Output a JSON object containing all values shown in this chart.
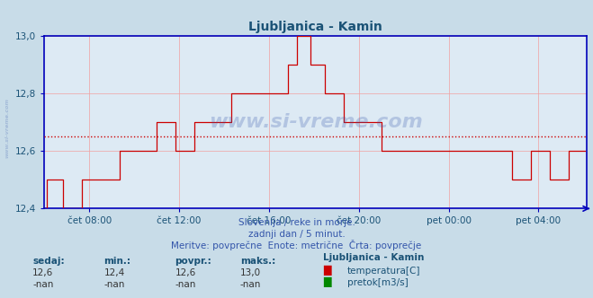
{
  "title": "Ljubljanica - Kamin",
  "title_color": "#1a5276",
  "bg_color": "#c8dce8",
  "plot_bg_color": "#ddeaf4",
  "grid_color": "#f0a0a0",
  "axis_color": "#0000bb",
  "line_color": "#cc0000",
  "avg_line_color": "#cc0000",
  "avg_line_value": 12.65,
  "ylim": [
    12.4,
    13.0
  ],
  "yticks": [
    12.4,
    12.6,
    12.8,
    13.0
  ],
  "subtitle1": "Slovenija / reke in morje.",
  "subtitle2": "zadnji dan / 5 minut.",
  "subtitle3": "Meritve: povprečne  Enote: metrične  Črta: povprečje",
  "subtitle_color": "#3355aa",
  "watermark": "www.si-vreme.com",
  "watermark_color": "#3355aa",
  "watermark_alpha": 0.25,
  "side_watermark": "www.si-vreme.com",
  "legend_title": "Ljubljanica - Kamin",
  "legend_title_color": "#1a5276",
  "stat_labels": [
    "sedaj:",
    "min.:",
    "povpr.:",
    "maks.:"
  ],
  "stat_values_temp": [
    "12,6",
    "12,4",
    "12,6",
    "13,0"
  ],
  "stat_values_flow": [
    "-nan",
    "-nan",
    "-nan",
    "-nan"
  ],
  "stat_color": "#1a5276",
  "stat_value_color": "#333333",
  "legend_temp_color": "#cc0000",
  "legend_flow_color": "#008800",
  "tick_label_color": "#1a5276",
  "xtick_labels": [
    "čet 08:00",
    "čet 12:00",
    "čet 16:00",
    "čet 20:00",
    "pet 00:00",
    "pet 04:00"
  ],
  "total_points": 288,
  "temperature_data": [
    12.4,
    12.5,
    12.5,
    12.5,
    12.5,
    12.5,
    12.5,
    12.5,
    12.5,
    12.5,
    12.4,
    12.4,
    12.4,
    12.4,
    12.4,
    12.4,
    12.4,
    12.4,
    12.4,
    12.4,
    12.5,
    12.5,
    12.5,
    12.5,
    12.5,
    12.5,
    12.5,
    12.5,
    12.5,
    12.5,
    12.5,
    12.5,
    12.5,
    12.5,
    12.5,
    12.5,
    12.5,
    12.5,
    12.5,
    12.5,
    12.6,
    12.6,
    12.6,
    12.6,
    12.6,
    12.6,
    12.6,
    12.6,
    12.6,
    12.6,
    12.6,
    12.6,
    12.6,
    12.6,
    12.6,
    12.6,
    12.6,
    12.6,
    12.6,
    12.6,
    12.7,
    12.7,
    12.7,
    12.7,
    12.7,
    12.7,
    12.7,
    12.7,
    12.7,
    12.7,
    12.6,
    12.6,
    12.6,
    12.6,
    12.6,
    12.6,
    12.6,
    12.6,
    12.6,
    12.6,
    12.7,
    12.7,
    12.7,
    12.7,
    12.7,
    12.7,
    12.7,
    12.7,
    12.7,
    12.7,
    12.7,
    12.7,
    12.7,
    12.7,
    12.7,
    12.7,
    12.7,
    12.7,
    12.7,
    12.7,
    12.8,
    12.8,
    12.8,
    12.8,
    12.8,
    12.8,
    12.8,
    12.8,
    12.8,
    12.8,
    12.8,
    12.8,
    12.8,
    12.8,
    12.8,
    12.8,
    12.8,
    12.8,
    12.8,
    12.8,
    12.8,
    12.8,
    12.8,
    12.8,
    12.8,
    12.8,
    12.8,
    12.8,
    12.8,
    12.8,
    12.9,
    12.9,
    12.9,
    12.9,
    12.9,
    13.0,
    13.0,
    13.0,
    13.0,
    13.0,
    13.0,
    13.0,
    12.9,
    12.9,
    12.9,
    12.9,
    12.9,
    12.9,
    12.9,
    12.9,
    12.8,
    12.8,
    12.8,
    12.8,
    12.8,
    12.8,
    12.8,
    12.8,
    12.8,
    12.8,
    12.7,
    12.7,
    12.7,
    12.7,
    12.7,
    12.7,
    12.7,
    12.7,
    12.7,
    12.7,
    12.7,
    12.7,
    12.7,
    12.7,
    12.7,
    12.7,
    12.7,
    12.7,
    12.7,
    12.7,
    12.6,
    12.6,
    12.6,
    12.6,
    12.6,
    12.6,
    12.6,
    12.6,
    12.6,
    12.6,
    12.6,
    12.6,
    12.6,
    12.6,
    12.6,
    12.6,
    12.6,
    12.6,
    12.6,
    12.6,
    12.6,
    12.6,
    12.6,
    12.6,
    12.6,
    12.6,
    12.6,
    12.6,
    12.6,
    12.6,
    12.6,
    12.6,
    12.6,
    12.6,
    12.6,
    12.6,
    12.6,
    12.6,
    12.6,
    12.6,
    12.6,
    12.6,
    12.6,
    12.6,
    12.6,
    12.6,
    12.6,
    12.6,
    12.6,
    12.6,
    12.6,
    12.6,
    12.6,
    12.6,
    12.6,
    12.6,
    12.6,
    12.6,
    12.6,
    12.6,
    12.6,
    12.6,
    12.6,
    12.6,
    12.6,
    12.6,
    12.6,
    12.6,
    12.6,
    12.6,
    12.5,
    12.5,
    12.5,
    12.5,
    12.5,
    12.5,
    12.5,
    12.5,
    12.5,
    12.5,
    12.6,
    12.6,
    12.6,
    12.6,
    12.6,
    12.6,
    12.6,
    12.6,
    12.6,
    12.6,
    12.5,
    12.5,
    12.5,
    12.5,
    12.5,
    12.5,
    12.5,
    12.5,
    12.5,
    12.5,
    12.6,
    12.6,
    12.6,
    12.6,
    12.6,
    12.6,
    12.6,
    12.6,
    12.6,
    12.6
  ]
}
